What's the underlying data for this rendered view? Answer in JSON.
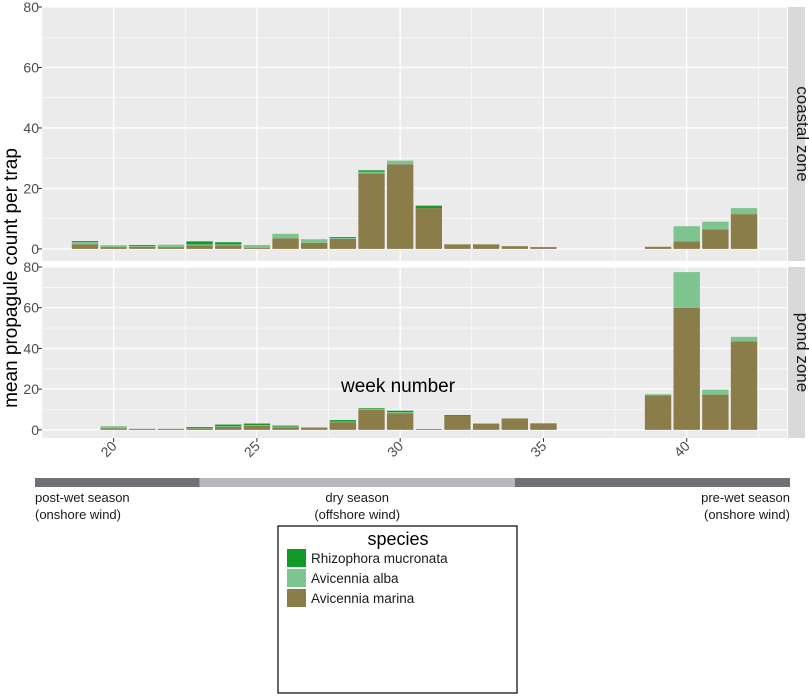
{
  "chart_data": {
    "type": "bar",
    "stacked": true,
    "ylabel": "mean propagule count per trap",
    "xlabel": "week number",
    "xlim": [
      17.5,
      43.5
    ],
    "ylim": [
      -4,
      80
    ],
    "x_ticks": [
      20,
      25,
      30,
      35,
      40
    ],
    "y_ticks": [
      0,
      20,
      40,
      60,
      80
    ],
    "colors": {
      "panel_bg": "#EBEBEB",
      "grid": "#FFFFFF",
      "strip_bg": "#D9D9D9",
      "Avicennia marina": "#8A7D4A",
      "Avicennia alba": "#7DC48F",
      "Rhizophora mucronata": "#119A2A"
    },
    "series_names": [
      "Avicennia marina",
      "Avicennia alba",
      "Rhizophora mucronata"
    ],
    "panels": [
      {
        "strip": "coastal zone",
        "weeks": [
          19,
          20,
          21,
          22,
          23,
          24,
          25,
          26,
          27,
          28,
          29,
          30,
          31,
          32,
          33,
          34,
          35,
          39,
          40,
          41,
          42
        ],
        "series": [
          {
            "name": "Avicennia marina",
            "values": [
              1.5,
              0.6,
              0.7,
              0.6,
              1.2,
              1.2,
              0.3,
              3.5,
              2.0,
              3.3,
              25.0,
              28.0,
              13.5,
              1.5,
              1.5,
              0.9,
              0.6,
              0.7,
              2.5,
              6.5,
              11.5
            ]
          },
          {
            "name": "Avicennia alba",
            "values": [
              0.8,
              0.6,
              0.3,
              0.8,
              0.3,
              0.3,
              1.0,
              1.5,
              1.2,
              0.3,
              0.5,
              1.2,
              0.0,
              0.0,
              0.0,
              0.0,
              0.0,
              0.0,
              5.0,
              2.5,
              2.0
            ]
          },
          {
            "name": "Rhizophora mucronata",
            "values": [
              0.3,
              0.0,
              0.3,
              0.0,
              1.0,
              0.7,
              0.0,
              0.0,
              0.0,
              0.3,
              0.5,
              0.0,
              0.8,
              0.0,
              0.0,
              0.0,
              0.0,
              0.0,
              0.0,
              0.0,
              0.0
            ]
          }
        ]
      },
      {
        "strip": "pond zone",
        "weeks": [
          20,
          21,
          22,
          23,
          24,
          25,
          26,
          27,
          28,
          29,
          30,
          31,
          32,
          33,
          34,
          35,
          39,
          40,
          41,
          42
        ],
        "series": [
          {
            "name": "Avicennia marina",
            "values": [
              0.8,
              0.5,
              0.5,
              0.8,
              1.5,
              2.0,
              1.3,
              1.0,
              3.8,
              9.8,
              8.2,
              0.4,
              7.0,
              3.1,
              5.6,
              3.2,
              17.0,
              60.0,
              17.3,
              43.5
            ]
          },
          {
            "name": "Avicennia alba",
            "values": [
              1.0,
              0.0,
              0.0,
              0.3,
              0.3,
              0.3,
              0.5,
              0.3,
              0.3,
              0.5,
              0.5,
              0.0,
              0.0,
              0.0,
              0.0,
              0.0,
              0.5,
              17.5,
              2.5,
              2.2
            ]
          },
          {
            "name": "Rhizophora mucronata",
            "values": [
              0.0,
              0.0,
              0.0,
              0.3,
              0.8,
              0.8,
              0.3,
              0.0,
              0.7,
              0.3,
              0.7,
              0.0,
              0.3,
              0.0,
              0.0,
              0.0,
              0.0,
              0.0,
              0.0,
              0.0
            ]
          }
        ]
      }
    ],
    "seasons": [
      {
        "name": "post-wet season",
        "wind": "(onshore wind)",
        "color": "#707078",
        "from": 17.5,
        "to": 23.0,
        "align": "start"
      },
      {
        "name": "dry season",
        "wind": "(offshore wind)",
        "color": "#B7B8C0",
        "from": 23.0,
        "to": 34.0,
        "align": "middle"
      },
      {
        "name": "pre-wet season",
        "wind": "(onshore wind)",
        "color": "#707078",
        "from": 34.0,
        "to": 43.5,
        "align": "end"
      }
    ],
    "legend": {
      "title": "species",
      "entries": [
        "Rhizophora mucronata",
        "Avicennia alba",
        "Avicennia marina"
      ],
      "position": "bottom-center"
    }
  }
}
